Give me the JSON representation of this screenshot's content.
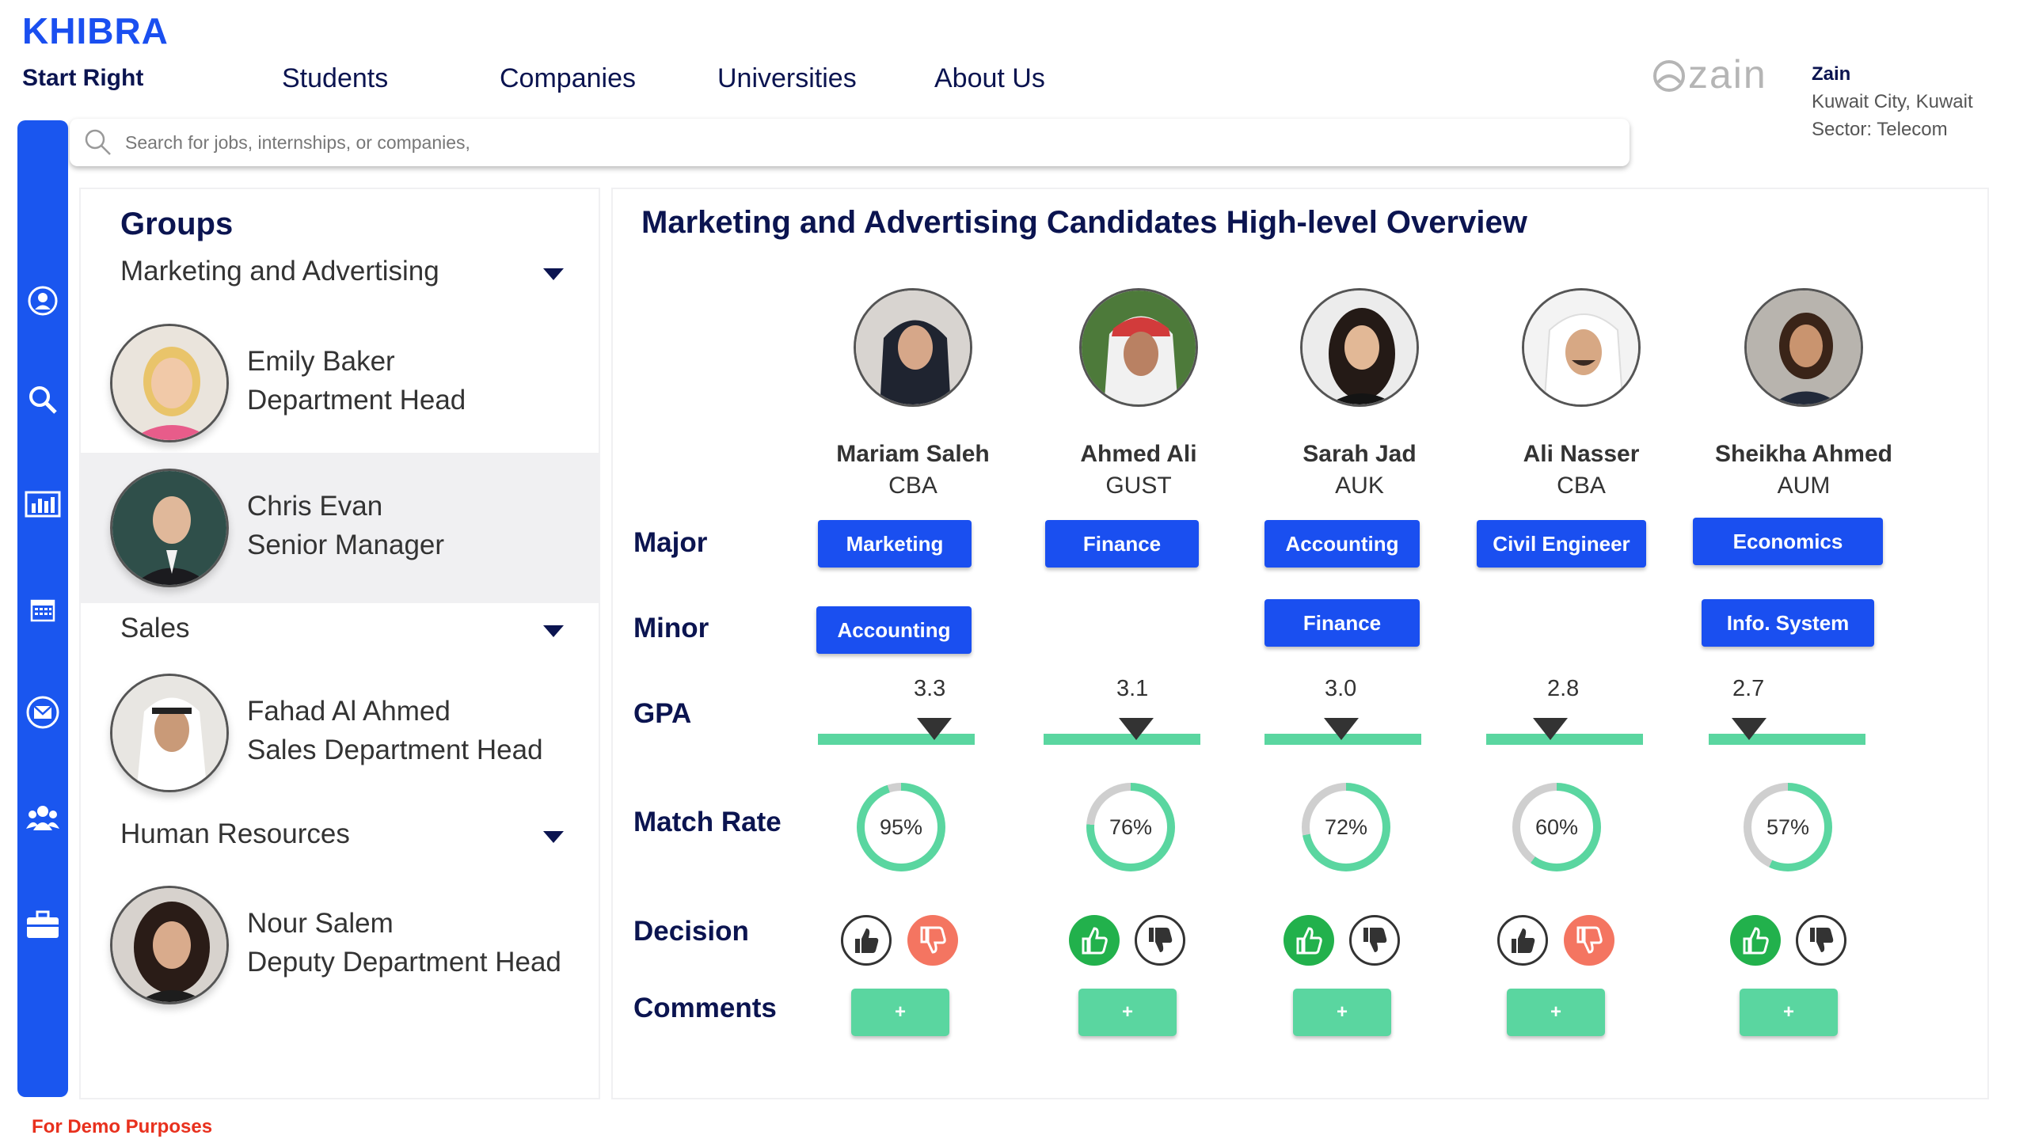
{
  "header": {
    "brand": "KHIBRA",
    "tagline": "Start Right",
    "nav": [
      "Students",
      "Companies",
      "Universities",
      "About Us"
    ]
  },
  "company": {
    "logo_text": "zain",
    "name": "Zain",
    "location": "Kuwait City, Kuwait",
    "sector": "Sector: Telecom"
  },
  "search": {
    "placeholder": "Search for jobs, internships, or companies,"
  },
  "rail": {
    "icons": [
      "profile-icon",
      "search-icon",
      "dashboard-icon",
      "calendar-icon",
      "mail-icon",
      "group-icon",
      "briefcase-icon"
    ]
  },
  "groups": {
    "title": "Groups",
    "sections": [
      {
        "name": "Marketing and Advertising",
        "members": [
          {
            "name": "Emily Baker",
            "role": "Department Head"
          },
          {
            "name": "Chris Evan",
            "role": "Senior Manager"
          }
        ]
      },
      {
        "name": "Sales",
        "members": [
          {
            "name": "Fahad Al Ahmed",
            "role": "Sales Department Head"
          }
        ]
      },
      {
        "name": "Human Resources",
        "members": [
          {
            "name": "Nour Salem",
            "role": "Deputy Department Head"
          }
        ]
      }
    ]
  },
  "overview": {
    "title": "Marketing and Advertising Candidates High-level Overview",
    "row_labels": {
      "major": "Major",
      "minor": "Minor",
      "gpa": "GPA",
      "match_rate": "Match Rate",
      "decision": "Decision",
      "comments": "Comments"
    },
    "comment_button_label": "+",
    "candidates": [
      {
        "name": "Mariam Saleh",
        "university": "CBA",
        "major": "Marketing",
        "minor": "Accounting",
        "gpa": "3.3",
        "match": "95%",
        "match_value": 95,
        "decision": "down"
      },
      {
        "name": "Ahmed Ali",
        "university": "GUST",
        "major": "Finance",
        "minor": "",
        "gpa": "3.1",
        "match": "76%",
        "match_value": 76,
        "decision": "up"
      },
      {
        "name": "Sarah Jad",
        "university": "AUK",
        "major": "Accounting",
        "minor": "Finance",
        "gpa": "3.0",
        "match": "72%",
        "match_value": 72,
        "decision": "up"
      },
      {
        "name": "Ali Nasser",
        "university": "CBA",
        "major": "Civil Engineer",
        "minor": "",
        "gpa": "2.8",
        "match": "60%",
        "match_value": 60,
        "decision": "down"
      },
      {
        "name": "Sheikha Ahmed",
        "university": "AUM",
        "major": "Economics",
        "minor": "Info. System",
        "gpa": "2.7",
        "match": "57%",
        "match_value": 57,
        "decision": "up"
      }
    ]
  },
  "footer": {
    "note": "For Demo Purposes"
  },
  "colors": {
    "brand_blue": "#1a4ff0",
    "navy": "#0b1450",
    "green": "#5ad6a0",
    "thumb_green": "#22b14c",
    "thumb_red": "#f47561",
    "demo_red": "#e8301d"
  }
}
